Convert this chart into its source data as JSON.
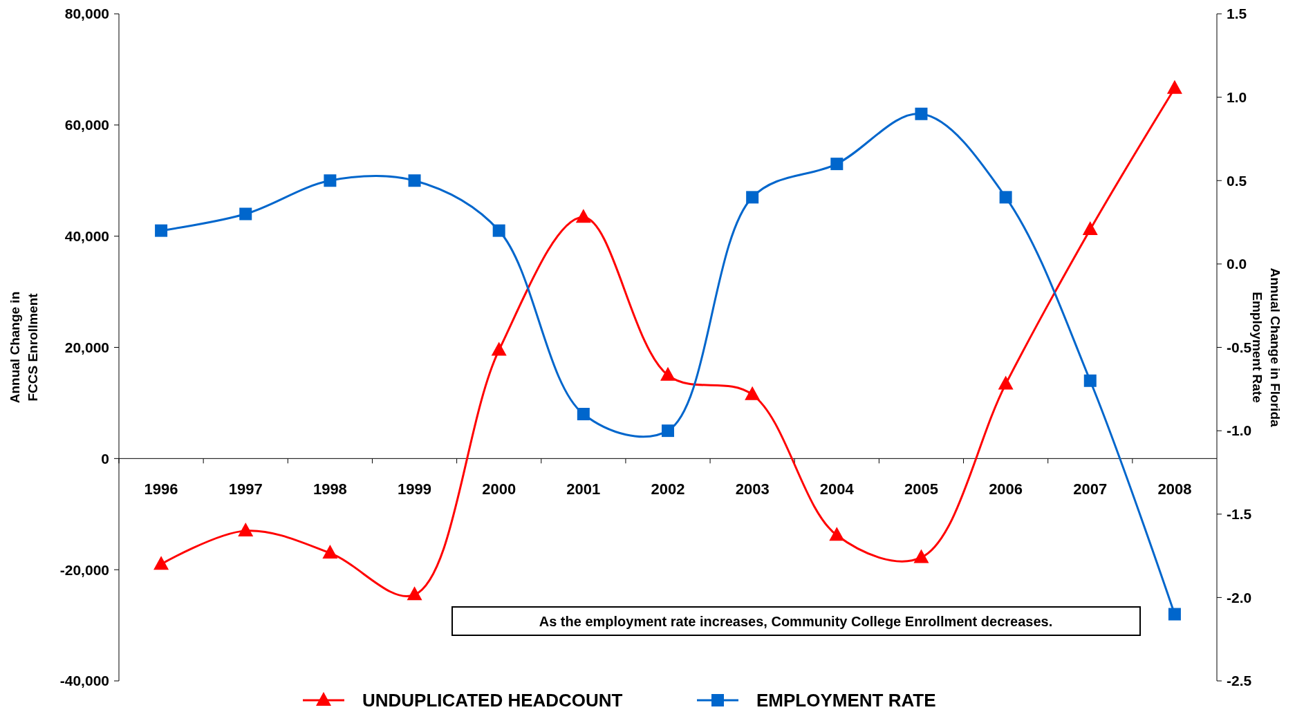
{
  "chart_data": {
    "type": "line",
    "categories": [
      "1996",
      "1997",
      "1998",
      "1999",
      "2000",
      "2001",
      "2002",
      "2003",
      "2004",
      "2005",
      "2006",
      "2007",
      "2008"
    ],
    "ylabel": "Annual Change in FCCS Enrollment",
    "y2label": "Annual Change in Florida Employment Rate",
    "ylim": [
      -40000,
      80000
    ],
    "yticks": [
      {
        "value": -40000,
        "label": "-40,000"
      },
      {
        "value": -20000,
        "label": "-20,000"
      },
      0,
      {
        "value": 20000,
        "label": "20,000"
      },
      {
        "value": 40000,
        "label": "40,000"
      },
      {
        "value": 60000,
        "label": "60,000"
      },
      {
        "value": 80000,
        "label": "80,000"
      }
    ],
    "y2lim": [
      -2.5,
      1.5
    ],
    "y2ticks": [
      -2.5,
      {
        "value": -2,
        "label": "-2.0"
      },
      -1.5,
      {
        "value": -1,
        "label": "-1.0"
      },
      -0.5,
      {
        "value": 0,
        "label": "0.0"
      },
      0.5,
      {
        "value": 1,
        "label": "1.0"
      },
      1.5
    ],
    "series": [
      {
        "name": "UNDUPLICATED HEADCOUNT",
        "color": "#ff0000",
        "marker": "triangle",
        "values": [
          -19000,
          -13000,
          -17000,
          -24500,
          19500,
          43400,
          15000,
          11500,
          -13800,
          -17800,
          13400,
          41200,
          66600
        ]
      },
      {
        "name": "EMPLOYMENT RATE",
        "color": "#0066cc",
        "marker": "square",
        "axis": "y2",
        "values": [
          0.2,
          0.3,
          0.5,
          0.5,
          0.2,
          -0.9,
          -1.0,
          0.4,
          0.6,
          0.9,
          0.4,
          -0.7,
          -2.1
        ]
      }
    ],
    "annotations": [
      "As the employment rate increases, Community College Enrollment decreases."
    ],
    "legend": "bottom",
    "grid": false
  }
}
